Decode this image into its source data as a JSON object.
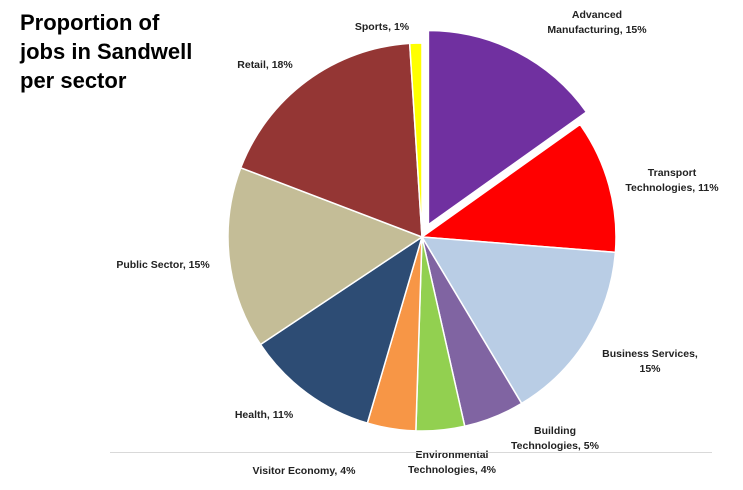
{
  "title_lines": [
    "Proportion of",
    "jobs in Sandwell",
    "per sector"
  ],
  "chart_data": {
    "type": "pie",
    "title": "Proportion of jobs in Sandwell per sector",
    "start_angle_deg": 0,
    "direction": "clockwise",
    "slices": [
      {
        "label": "Advanced Manufacturing",
        "value": 15,
        "pct_text": "15%",
        "color": "#7030a0",
        "exploded": true,
        "label_lines": [
          "Advanced",
          "Manufacturing, 15%"
        ]
      },
      {
        "label": "Transport Technologies",
        "value": 11,
        "pct_text": "11%",
        "color": "#ff0000",
        "label_lines": [
          "Transport",
          "Technologies, 11%"
        ]
      },
      {
        "label": "Business Services",
        "value": 15,
        "pct_text": "15%",
        "color": "#b9cde5",
        "label_lines": [
          "Business Services,",
          "15%"
        ]
      },
      {
        "label": "Building Technologies",
        "value": 5,
        "pct_text": "5%",
        "color": "#8064a2",
        "label_lines": [
          "Building",
          "Technologies, 5%"
        ]
      },
      {
        "label": "Environmental Technologies",
        "value": 4,
        "pct_text": "4%",
        "color": "#92d050",
        "label_lines": [
          "Environmental",
          "Technologies, 4%"
        ]
      },
      {
        "label": "Visitor Economy",
        "value": 4,
        "pct_text": "4%",
        "color": "#f79646",
        "label_lines": [
          "Visitor Economy, 4%"
        ]
      },
      {
        "label": "Health",
        "value": 11,
        "pct_text": "11%",
        "color": "#2d4c74",
        "label_lines": [
          "Health, 11%"
        ]
      },
      {
        "label": "Public Sector",
        "value": 15,
        "pct_text": "15%",
        "color": "#c4bd97",
        "label_lines": [
          "Public Sector, 15%"
        ]
      },
      {
        "label": "Retail",
        "value": 18,
        "pct_text": "18%",
        "color": "#943634",
        "label_lines": [
          "Retail, 18%"
        ]
      },
      {
        "label": "Sports",
        "value": 1,
        "pct_text": "1%",
        "color": "#ffff00",
        "label_lines": [
          "Sports, 1%"
        ]
      }
    ]
  }
}
